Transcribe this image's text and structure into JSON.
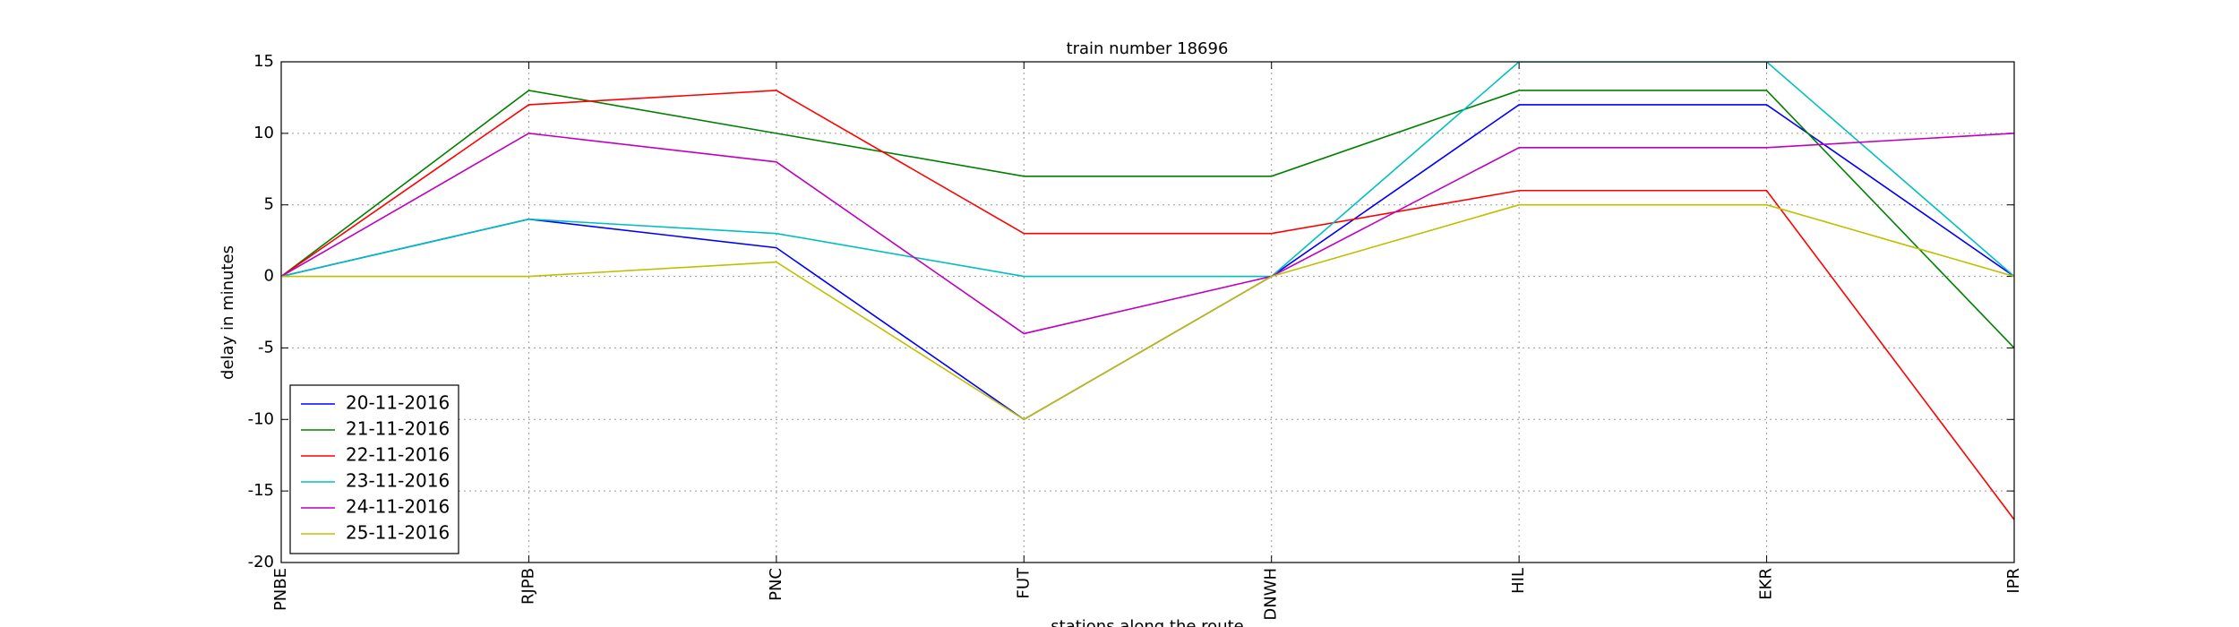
{
  "chart_data": {
    "type": "line",
    "title": "train number 18696",
    "x_label": "stations along the route",
    "y_label": "delay in minutes",
    "categories": [
      "PNBE",
      "RJPB",
      "PNC",
      "FUT",
      "DNWH",
      "HIL",
      "EKR",
      "IPR"
    ],
    "series": [
      {
        "name": "20-11-2016",
        "color": "#0000ff",
        "values": [
          0,
          4,
          2,
          -10,
          0,
          12,
          12,
          0
        ]
      },
      {
        "name": "21-11-2016",
        "color": "#008000",
        "values": [
          0,
          13,
          10,
          7,
          7,
          13,
          13,
          -5
        ]
      },
      {
        "name": "22-11-2016",
        "color": "#ff0000",
        "values": [
          0,
          12,
          13,
          3,
          3,
          6,
          6,
          -17
        ]
      },
      {
        "name": "23-11-2016",
        "color": "#00bfbf",
        "values": [
          0,
          4,
          3,
          0,
          0,
          15,
          15,
          0
        ]
      },
      {
        "name": "24-11-2016",
        "color": "#bf00bf",
        "values": [
          0,
          10,
          8,
          -4,
          0,
          9,
          9,
          10
        ]
      },
      {
        "name": "25-11-2016",
        "color": "#bfbf00",
        "values": [
          0,
          0,
          1,
          -10,
          0,
          5,
          5,
          0
        ]
      }
    ],
    "ylim": [
      -20,
      15
    ],
    "yticks": [
      -20,
      -15,
      -10,
      -5,
      0,
      5,
      10,
      15
    ],
    "grid": true,
    "legend": "lower left"
  }
}
